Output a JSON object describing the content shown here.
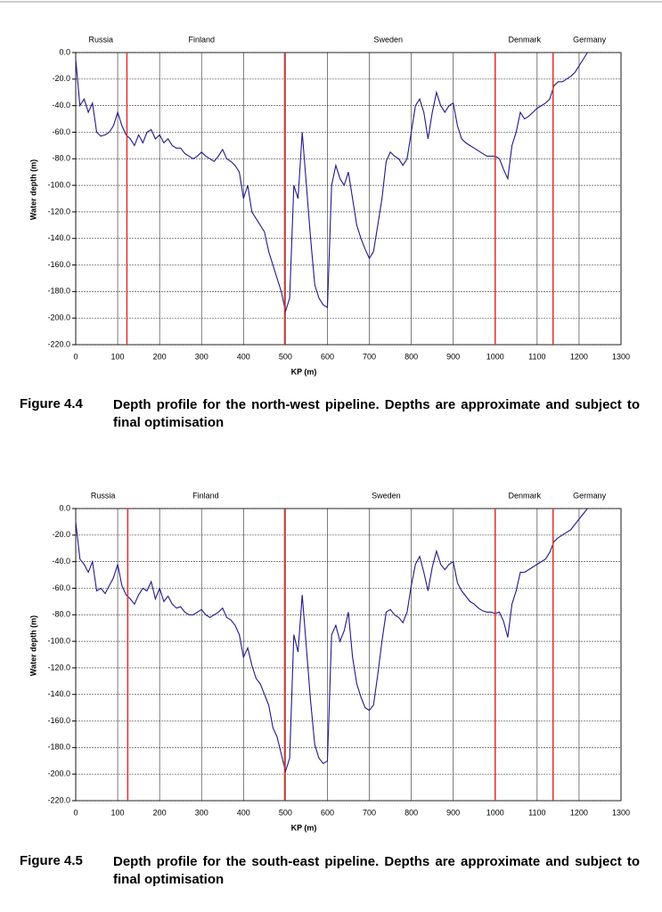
{
  "chart_data": [
    {
      "type": "line",
      "figure_label": "Figure 4.4",
      "caption": "Depth profile for the north-west pipeline. Depths are approximate and subject to final optimisation",
      "x_label": "KP (m)",
      "y_label": "Water depth (m)",
      "xlim": [
        0,
        1300
      ],
      "xticks": [
        0,
        100,
        200,
        300,
        400,
        500,
        600,
        700,
        800,
        900,
        1000,
        1100,
        1200,
        1300
      ],
      "ylim": [
        -220,
        0
      ],
      "yticks": [
        {
          "value": 0,
          "label": "0.0"
        },
        {
          "value": -20,
          "label": "-20.0"
        },
        {
          "value": -40,
          "label": "-40.0"
        },
        {
          "value": -60,
          "label": "-60.0"
        },
        {
          "value": -80,
          "label": "-80.0"
        },
        {
          "value": -100,
          "label": "-100.0"
        },
        {
          "value": -120,
          "label": "-120.0"
        },
        {
          "value": -140,
          "label": "-140.0"
        },
        {
          "value": -160,
          "label": "-160.0"
        },
        {
          "value": -180,
          "label": "-180.0"
        },
        {
          "value": -200,
          "label": "-200.0"
        },
        {
          "value": -220,
          "label": "-220.0"
        }
      ],
      "grid": true,
      "regions": [
        {
          "label": "Russia",
          "x": 60
        },
        {
          "label": "Finland",
          "x": 300
        },
        {
          "label": "Sweden",
          "x": 745
        },
        {
          "label": "Denmark",
          "x": 1070
        },
        {
          "label": "Germany",
          "x": 1225
        }
      ],
      "borders": [
        122,
        498,
        1000,
        1138
      ],
      "border_color": "#e0302b",
      "x": [
        0,
        10,
        20,
        30,
        40,
        50,
        60,
        70,
        80,
        90,
        100,
        110,
        120,
        130,
        140,
        150,
        160,
        170,
        180,
        190,
        200,
        210,
        220,
        230,
        240,
        250,
        260,
        270,
        280,
        290,
        300,
        310,
        320,
        330,
        340,
        350,
        360,
        370,
        380,
        390,
        400,
        410,
        420,
        430,
        440,
        450,
        460,
        470,
        480,
        490,
        500,
        510,
        520,
        530,
        540,
        550,
        560,
        570,
        580,
        590,
        600,
        610,
        620,
        630,
        640,
        650,
        660,
        670,
        680,
        690,
        700,
        710,
        720,
        730,
        740,
        750,
        760,
        770,
        780,
        790,
        800,
        810,
        820,
        830,
        840,
        850,
        860,
        870,
        880,
        890,
        900,
        910,
        920,
        930,
        940,
        950,
        960,
        970,
        980,
        990,
        1000,
        1010,
        1020,
        1030,
        1040,
        1050,
        1060,
        1070,
        1080,
        1090,
        1100,
        1110,
        1120,
        1130,
        1140,
        1150,
        1160,
        1170,
        1180,
        1190,
        1200,
        1210,
        1220
      ],
      "series": [
        {
          "color": "#1f1a8a",
          "values": [
            -5,
            -40,
            -35,
            -45,
            -38,
            -60,
            -63,
            -62,
            -60,
            -55,
            -45,
            -55,
            -62,
            -65,
            -70,
            -62,
            -68,
            -60,
            -58,
            -65,
            -62,
            -68,
            -65,
            -70,
            -72,
            -72,
            -76,
            -78,
            -80,
            -78,
            -75,
            -78,
            -80,
            -82,
            -78,
            -73,
            -80,
            -82,
            -85,
            -90,
            -110,
            -100,
            -120,
            -125,
            -130,
            -135,
            -150,
            -160,
            -170,
            -180,
            -195,
            -185,
            -100,
            -110,
            -60,
            -100,
            -140,
            -175,
            -185,
            -190,
            -192,
            -100,
            -85,
            -95,
            -100,
            -90,
            -110,
            -130,
            -140,
            -148,
            -155,
            -150,
            -130,
            -110,
            -82,
            -75,
            -78,
            -80,
            -85,
            -80,
            -60,
            -40,
            -35,
            -45,
            -65,
            -45,
            -30,
            -40,
            -45,
            -40,
            -38,
            -55,
            -65,
            -68,
            -70,
            -72,
            -74,
            -76,
            -78,
            -78,
            -78,
            -80,
            -88,
            -95,
            -70,
            -60,
            -45,
            -50,
            -48,
            -45,
            -42,
            -40,
            -38,
            -35,
            -25,
            -22,
            -22,
            -20,
            -18,
            -15,
            -10,
            -5,
            0
          ]
        }
      ]
    },
    {
      "type": "line",
      "figure_label": "Figure 4.5",
      "caption": "Depth profile for the south-east pipeline. Depths are approximate and subject to final optimisation",
      "x_label": "KP (m)",
      "y_label": "Water depth (m)",
      "xlim": [
        0,
        1300
      ],
      "xticks": [
        0,
        100,
        200,
        300,
        400,
        500,
        600,
        700,
        800,
        900,
        1000,
        1100,
        1200,
        1300
      ],
      "ylim": [
        -220,
        0
      ],
      "yticks": [
        {
          "value": 0,
          "label": "0.0"
        },
        {
          "value": -20,
          "label": "-20.0"
        },
        {
          "value": -40,
          "label": "-40.0"
        },
        {
          "value": -60,
          "label": "-60.0"
        },
        {
          "value": -80,
          "label": "-80.0"
        },
        {
          "value": -100,
          "label": "-100.0"
        },
        {
          "value": -120,
          "label": "-120.0"
        },
        {
          "value": -140,
          "label": "-140.0"
        },
        {
          "value": -160,
          "label": "-160.0"
        },
        {
          "value": -180,
          "label": "-180.0"
        },
        {
          "value": -200,
          "label": "-200.0"
        },
        {
          "value": -220,
          "label": "-220.0"
        }
      ],
      "grid": true,
      "regions": [
        {
          "label": "Russia",
          "x": 65
        },
        {
          "label": "Finland",
          "x": 310
        },
        {
          "label": "Sweden",
          "x": 740
        },
        {
          "label": "Denmark",
          "x": 1070
        },
        {
          "label": "Germany",
          "x": 1225
        }
      ],
      "borders": [
        124,
        498,
        1000,
        1138
      ],
      "border_color": "#e0302b",
      "x": [
        0,
        10,
        20,
        30,
        40,
        50,
        60,
        70,
        80,
        90,
        100,
        110,
        120,
        130,
        140,
        150,
        160,
        170,
        180,
        190,
        200,
        210,
        220,
        230,
        240,
        250,
        260,
        270,
        280,
        290,
        300,
        310,
        320,
        330,
        340,
        350,
        360,
        370,
        380,
        390,
        400,
        410,
        420,
        430,
        440,
        450,
        460,
        470,
        480,
        490,
        500,
        510,
        520,
        530,
        540,
        550,
        560,
        570,
        580,
        590,
        600,
        610,
        620,
        630,
        640,
        650,
        660,
        670,
        680,
        690,
        700,
        710,
        720,
        730,
        740,
        750,
        760,
        770,
        780,
        790,
        800,
        810,
        820,
        830,
        840,
        850,
        860,
        870,
        880,
        890,
        900,
        910,
        920,
        930,
        940,
        950,
        960,
        970,
        980,
        990,
        1000,
        1010,
        1020,
        1030,
        1040,
        1050,
        1060,
        1070,
        1080,
        1090,
        1100,
        1110,
        1120,
        1130,
        1140,
        1150,
        1160,
        1170,
        1180,
        1190,
        1200,
        1210,
        1220
      ],
      "series": [
        {
          "color": "#1f1a8a",
          "values": [
            -10,
            -38,
            -42,
            -48,
            -40,
            -62,
            -60,
            -64,
            -58,
            -52,
            -42,
            -58,
            -65,
            -68,
            -72,
            -65,
            -60,
            -62,
            -55,
            -68,
            -60,
            -70,
            -66,
            -72,
            -75,
            -74,
            -78,
            -80,
            -80,
            -78,
            -76,
            -80,
            -82,
            -80,
            -78,
            -75,
            -82,
            -84,
            -88,
            -95,
            -112,
            -105,
            -118,
            -128,
            -132,
            -140,
            -148,
            -165,
            -172,
            -185,
            -198,
            -188,
            -95,
            -108,
            -65,
            -105,
            -145,
            -178,
            -188,
            -192,
            -190,
            -95,
            -88,
            -100,
            -92,
            -78,
            -112,
            -132,
            -142,
            -150,
            -152,
            -148,
            -125,
            -100,
            -78,
            -76,
            -80,
            -82,
            -86,
            -78,
            -58,
            -42,
            -36,
            -48,
            -62,
            -44,
            -32,
            -42,
            -46,
            -42,
            -40,
            -56,
            -62,
            -66,
            -70,
            -72,
            -75,
            -77,
            -78,
            -78,
            -79,
            -78,
            -85,
            -97,
            -72,
            -62,
            -48,
            -48,
            -46,
            -44,
            -42,
            -40,
            -38,
            -33,
            -25,
            -22,
            -20,
            -18,
            -16,
            -12,
            -8,
            -4,
            0
          ]
        }
      ]
    }
  ]
}
